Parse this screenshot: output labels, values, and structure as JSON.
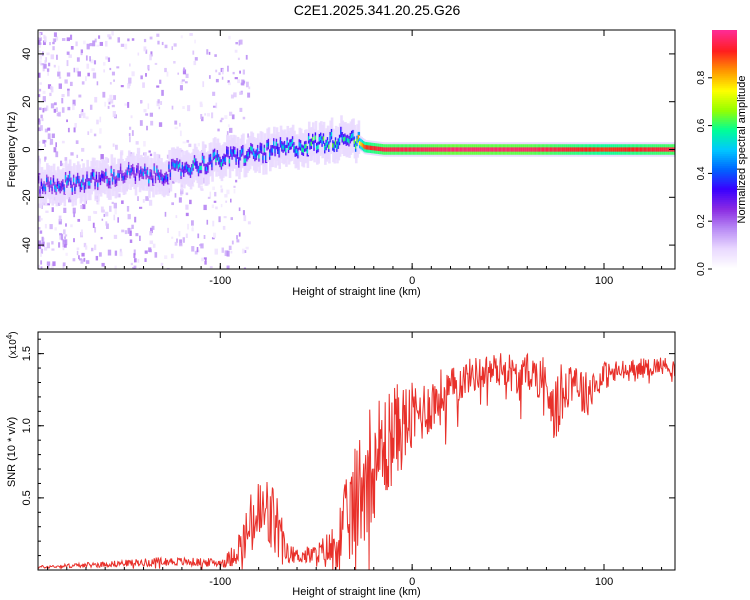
{
  "figure": {
    "title": "C2E1.2025.341.20.25.G26"
  },
  "colors": {
    "line": "#e8302a",
    "axis": "#000000",
    "background": "#ffffff"
  },
  "chart_data": [
    {
      "type": "heatmap",
      "title": "C2E1.2025.341.20.25.G26",
      "xlabel": "Height of straight line (km)",
      "ylabel": "Frequency (Hz)",
      "xlim": [
        -195,
        137
      ],
      "ylim": [
        -50,
        50
      ],
      "xticks": [
        -100,
        0,
        100
      ],
      "xtick_labels": [
        "-100",
        "0",
        "100"
      ],
      "yticks": [
        -40,
        -20,
        0,
        20,
        40
      ],
      "ytick_labels": [
        "-40",
        "-20",
        "0",
        "20",
        "40"
      ],
      "colorbar": {
        "label": "Normalized spectral amplitude",
        "range": [
          0,
          1
        ],
        "ticks": [
          0.0,
          0.2,
          0.4,
          0.6,
          0.8
        ],
        "tick_labels": [
          "0.0",
          "0.2",
          "0.4",
          "0.6",
          "0.8"
        ],
        "colormap": [
          "#ffffff",
          "#e9d8ff",
          "#b98cf5",
          "#8a2be2",
          "#3a00ff",
          "#0064ff",
          "#00c8ff",
          "#00ff96",
          "#96ff00",
          "#ffff00",
          "#ff9600",
          "#ff1e1e",
          "#ff2a90"
        ]
      },
      "ridge": {
        "description": "frequency of the dominant spectral band versus height",
        "x": [
          -192,
          -180,
          -165,
          -150,
          -135,
          -120,
          -100,
          -85,
          -70,
          -55,
          -40,
          -33,
          -25,
          -15,
          0,
          20,
          60,
          100,
          137
        ],
        "freq": [
          -15,
          -14,
          -13,
          -10,
          -11,
          -8,
          -4,
          -2,
          0,
          2,
          4,
          6,
          1,
          0,
          0,
          0,
          0,
          0,
          0
        ],
        "amplitude": [
          0.35,
          0.4,
          0.4,
          0.35,
          0.38,
          0.42,
          0.45,
          0.45,
          0.47,
          0.5,
          0.55,
          0.45,
          0.9,
          0.95,
          0.95,
          0.98,
          0.97,
          0.9,
          0.95
        ]
      }
    },
    {
      "type": "line",
      "title": "",
      "xlabel": "Height of straight line (km)",
      "ylabel": "SNR (10 * v/v)",
      "exponent_label": "(x10",
      "exponent_value": "4",
      "xlim": [
        -195,
        137
      ],
      "ylim": [
        0,
        1.65
      ],
      "xticks": [
        -100,
        0,
        100
      ],
      "xtick_labels": [
        "-100",
        "0",
        "100"
      ],
      "yticks": [
        0.5,
        1.0,
        1.5
      ],
      "ytick_labels": [
        "0.5",
        "1.0",
        "1.5"
      ],
      "series": [
        {
          "name": "SNR",
          "envelope_x": [
            -195,
            -160,
            -130,
            -100,
            -95,
            -88,
            -82,
            -76,
            -70,
            -66,
            -60,
            -50,
            -42,
            -35,
            -30,
            -25,
            -20,
            -15,
            -10,
            -5,
            0,
            5,
            10,
            15,
            20,
            30,
            40,
            50,
            55,
            60,
            65,
            70,
            75,
            80,
            85,
            90,
            95,
            100,
            110,
            120,
            130,
            137
          ],
          "envelope_mean": [
            0.02,
            0.04,
            0.06,
            0.05,
            0.08,
            0.2,
            0.35,
            0.38,
            0.3,
            0.12,
            0.1,
            0.1,
            0.15,
            0.3,
            0.45,
            0.65,
            0.8,
            0.82,
            0.95,
            1.0,
            1.05,
            1.1,
            1.15,
            1.2,
            1.25,
            1.35,
            1.38,
            1.4,
            1.3,
            1.38,
            1.35,
            1.3,
            1.1,
            1.3,
            1.35,
            1.2,
            1.3,
            1.35,
            1.38,
            1.4,
            1.42,
            1.4
          ],
          "envelope_amplitude": [
            0.01,
            0.02,
            0.03,
            0.03,
            0.06,
            0.15,
            0.28,
            0.3,
            0.25,
            0.08,
            0.05,
            0.08,
            0.15,
            0.3,
            0.4,
            0.45,
            0.45,
            0.4,
            0.35,
            0.3,
            0.25,
            0.22,
            0.2,
            0.2,
            0.15,
            0.12,
            0.12,
            0.12,
            0.15,
            0.12,
            0.15,
            0.2,
            0.25,
            0.2,
            0.15,
            0.18,
            0.12,
            0.1,
            0.08,
            0.07,
            0.06,
            0.06
          ]
        }
      ]
    }
  ]
}
